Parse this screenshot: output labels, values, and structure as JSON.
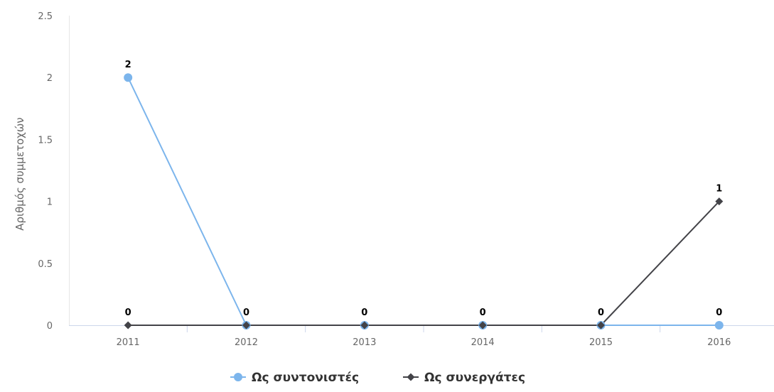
{
  "chart_data": {
    "type": "line",
    "title": "",
    "xlabel": "",
    "ylabel": "Αριθμός συμμετοχών",
    "categories": [
      "2011",
      "2012",
      "2013",
      "2014",
      "2015",
      "2016"
    ],
    "ylim": [
      0,
      2.5
    ],
    "yticks": [
      "0",
      "0.5",
      "1",
      "1.5",
      "2",
      "2.5"
    ],
    "grid": false,
    "legend_position": "bottom-center",
    "series": [
      {
        "name": "Ως συντονιστές",
        "values": [
          2,
          0,
          0,
          0,
          0,
          0
        ],
        "color": "#7cb5ec",
        "marker": "circle",
        "data_labels": [
          "2",
          "",
          "",
          "",
          "",
          "0"
        ]
      },
      {
        "name": "Ως συνεργάτες",
        "values": [
          0,
          0,
          0,
          0,
          0,
          1
        ],
        "color": "#434348",
        "marker": "diamond",
        "data_labels": [
          "0",
          "0",
          "0",
          "0",
          "0",
          "1"
        ]
      }
    ]
  }
}
